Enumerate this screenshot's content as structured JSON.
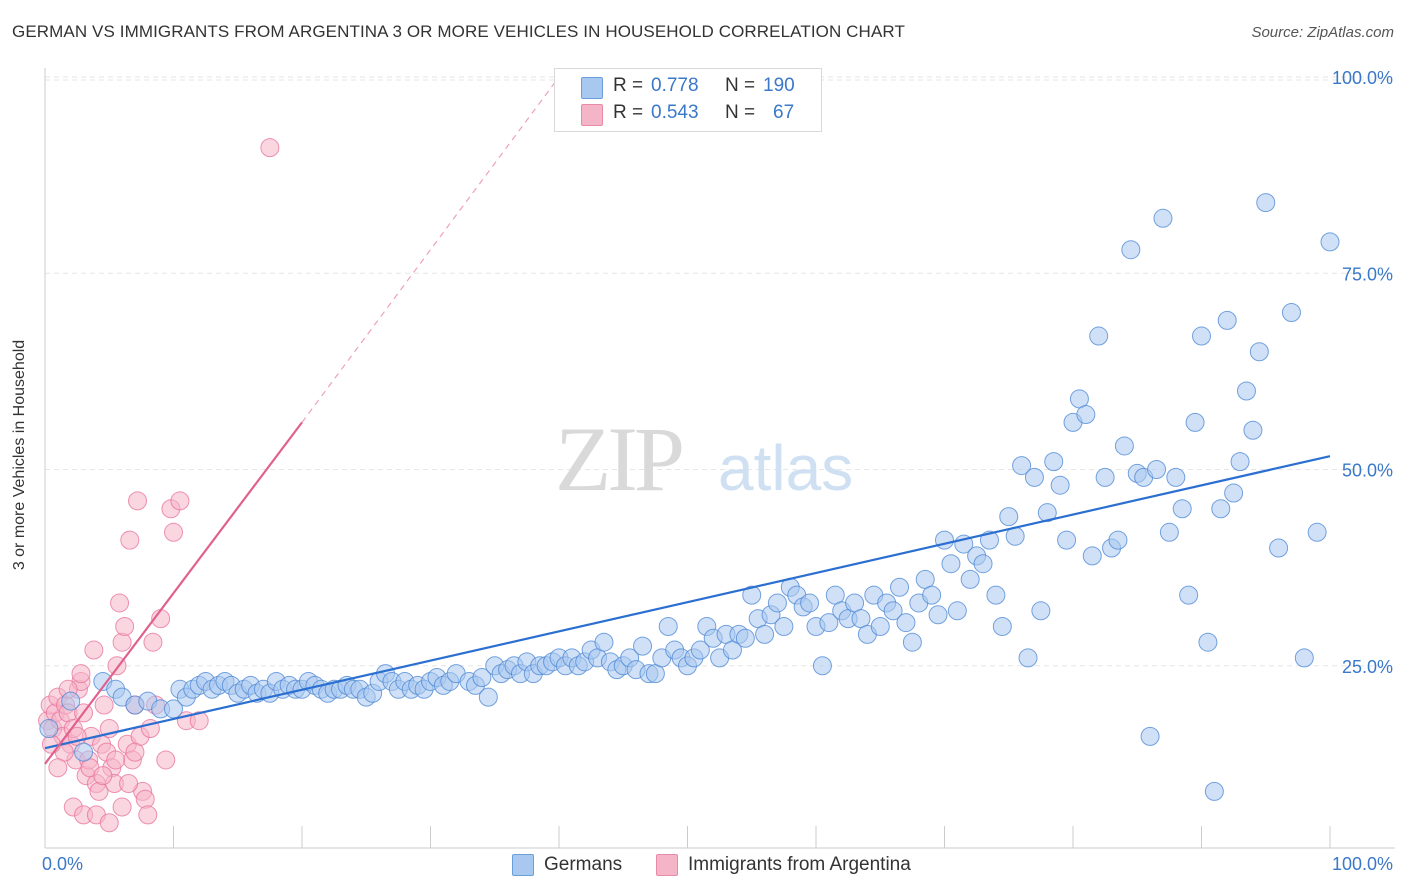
{
  "header": {
    "title": "GERMAN VS IMMIGRANTS FROM ARGENTINA 3 OR MORE VEHICLES IN HOUSEHOLD CORRELATION CHART",
    "source": "Source: ZipAtlas.com"
  },
  "watermark": {
    "zip": "ZIP",
    "atlas": "atlas"
  },
  "stats": {
    "rows": [
      {
        "r_label": "R =",
        "r_value": "0.778",
        "n_label": "N =",
        "n_value": "190",
        "color": "#a9c8f0"
      },
      {
        "r_label": "R =",
        "r_value": "0.543",
        "n_label": "N =",
        "n_value": "67",
        "color": "#f5b5c8"
      }
    ]
  },
  "legend": {
    "items": [
      {
        "label": "Germans",
        "color": "#a9c8f0"
      },
      {
        "label": "Immigrants from Argentina",
        "color": "#f5b5c8"
      }
    ]
  },
  "chart_data": {
    "type": "scatter",
    "title": "GERMAN VS IMMIGRANTS FROM ARGENTINA 3 OR MORE VEHICLES IN HOUSEHOLD CORRELATION CHART",
    "ylabel": "3 or more Vehicles in Household",
    "xlabel": "",
    "xlim": [
      0,
      100
    ],
    "ylim": [
      0,
      100
    ],
    "x_tick_labels": [
      "0.0%",
      "100.0%"
    ],
    "y_ticks": [
      25,
      50,
      75,
      100
    ],
    "y_tick_labels": [
      "25.0%",
      "50.0%",
      "75.0%",
      "100.0%"
    ],
    "grid": true,
    "series": [
      {
        "name": "Germans",
        "color": "#4a86d4",
        "fill": "#a9c8f0",
        "trend": {
          "x": [
            0,
            100
          ],
          "y": [
            14.5,
            51.7
          ],
          "style": "solid"
        },
        "points": [
          [
            0.3,
            17
          ],
          [
            2,
            20.5
          ],
          [
            3,
            14
          ],
          [
            4.5,
            23
          ],
          [
            5.5,
            22
          ],
          [
            6,
            21
          ],
          [
            7,
            20
          ],
          [
            8,
            20.5
          ],
          [
            9,
            19.5
          ],
          [
            10,
            19.5
          ],
          [
            10.5,
            22
          ],
          [
            11,
            21
          ],
          [
            11.5,
            22
          ],
          [
            12,
            22.5
          ],
          [
            12.5,
            23
          ],
          [
            13,
            22
          ],
          [
            13.5,
            22.5
          ],
          [
            14,
            23
          ],
          [
            14.5,
            22.5
          ],
          [
            15,
            21.5
          ],
          [
            15.5,
            22
          ],
          [
            16,
            22.5
          ],
          [
            16.5,
            21.5
          ],
          [
            17,
            22
          ],
          [
            17.5,
            21.5
          ],
          [
            18,
            23
          ],
          [
            18.5,
            22
          ],
          [
            19,
            22.5
          ],
          [
            19.5,
            22
          ],
          [
            20,
            22
          ],
          [
            20.5,
            23
          ],
          [
            21,
            22.5
          ],
          [
            21.5,
            22
          ],
          [
            22,
            21.5
          ],
          [
            22.5,
            22
          ],
          [
            23,
            22
          ],
          [
            23.5,
            22.5
          ],
          [
            24,
            22
          ],
          [
            24.5,
            22
          ],
          [
            25,
            21
          ],
          [
            25.5,
            21.5
          ],
          [
            26,
            23
          ],
          [
            26.5,
            24
          ],
          [
            27,
            23
          ],
          [
            27.5,
            22
          ],
          [
            28,
            23
          ],
          [
            28.5,
            22
          ],
          [
            29,
            22.5
          ],
          [
            29.5,
            22
          ],
          [
            30,
            23
          ],
          [
            30.5,
            23.5
          ],
          [
            31,
            22.5
          ],
          [
            31.5,
            23
          ],
          [
            32,
            24
          ],
          [
            33,
            23
          ],
          [
            33.5,
            22.5
          ],
          [
            34,
            23.5
          ],
          [
            34.5,
            21
          ],
          [
            35,
            25
          ],
          [
            35.5,
            24
          ],
          [
            36,
            24.5
          ],
          [
            36.5,
            25
          ],
          [
            37,
            24
          ],
          [
            37.5,
            25.5
          ],
          [
            38,
            24
          ],
          [
            38.5,
            25
          ],
          [
            39,
            25
          ],
          [
            39.5,
            25.5
          ],
          [
            40,
            26
          ],
          [
            40.5,
            25
          ],
          [
            41,
            26
          ],
          [
            41.5,
            25
          ],
          [
            42,
            25.5
          ],
          [
            42.5,
            27
          ],
          [
            43,
            26
          ],
          [
            43.5,
            28
          ],
          [
            44,
            25.5
          ],
          [
            44.5,
            24.5
          ],
          [
            45,
            25
          ],
          [
            45.5,
            26
          ],
          [
            46,
            24.5
          ],
          [
            46.5,
            27.5
          ],
          [
            47,
            24
          ],
          [
            47.5,
            24
          ],
          [
            48,
            26
          ],
          [
            48.5,
            30
          ],
          [
            49,
            27
          ],
          [
            49.5,
            26
          ],
          [
            50,
            25
          ],
          [
            50.5,
            26
          ],
          [
            51,
            27
          ],
          [
            51.5,
            30
          ],
          [
            52,
            28.5
          ],
          [
            52.5,
            26
          ],
          [
            53,
            29
          ],
          [
            53.5,
            27
          ],
          [
            54,
            29
          ],
          [
            54.5,
            28.5
          ],
          [
            55,
            34
          ],
          [
            55.5,
            31
          ],
          [
            56,
            29
          ],
          [
            56.5,
            31.5
          ],
          [
            57,
            33
          ],
          [
            57.5,
            30
          ],
          [
            58,
            35
          ],
          [
            58.5,
            34
          ],
          [
            59,
            32.5
          ],
          [
            59.5,
            33
          ],
          [
            60,
            30
          ],
          [
            60.5,
            25
          ],
          [
            61,
            30.5
          ],
          [
            61.5,
            34
          ],
          [
            62,
            32
          ],
          [
            62.5,
            31
          ],
          [
            63,
            33
          ],
          [
            63.5,
            31
          ],
          [
            64,
            29
          ],
          [
            64.5,
            34
          ],
          [
            65,
            30
          ],
          [
            65.5,
            33
          ],
          [
            66,
            32
          ],
          [
            66.5,
            35
          ],
          [
            67,
            30.5
          ],
          [
            67.5,
            28
          ],
          [
            68,
            33
          ],
          [
            68.5,
            36
          ],
          [
            69,
            34
          ],
          [
            69.5,
            31.5
          ],
          [
            70,
            41
          ],
          [
            70.5,
            38
          ],
          [
            71,
            32
          ],
          [
            71.5,
            40.5
          ],
          [
            72,
            36
          ],
          [
            72.5,
            39
          ],
          [
            73,
            38
          ],
          [
            73.5,
            41
          ],
          [
            74,
            34
          ],
          [
            74.5,
            30
          ],
          [
            75,
            44
          ],
          [
            75.5,
            41.5
          ],
          [
            76,
            50.5
          ],
          [
            76.5,
            26
          ],
          [
            77,
            49
          ],
          [
            77.5,
            32
          ],
          [
            78,
            44.5
          ],
          [
            78.5,
            51
          ],
          [
            79,
            48
          ],
          [
            79.5,
            41
          ],
          [
            80,
            56
          ],
          [
            80.5,
            59
          ],
          [
            81,
            57
          ],
          [
            81.5,
            39
          ],
          [
            82,
            67
          ],
          [
            82.5,
            49
          ],
          [
            83,
            40
          ],
          [
            83.5,
            41
          ],
          [
            84,
            53
          ],
          [
            84.5,
            78
          ],
          [
            85,
            49.5
          ],
          [
            85.5,
            49
          ],
          [
            86,
            16
          ],
          [
            86.5,
            50
          ],
          [
            87,
            82
          ],
          [
            87.5,
            42
          ],
          [
            88,
            49
          ],
          [
            88.5,
            45
          ],
          [
            89,
            34
          ],
          [
            89.5,
            56
          ],
          [
            90,
            67
          ],
          [
            90.5,
            28
          ],
          [
            91,
            9
          ],
          [
            91.5,
            45
          ],
          [
            92,
            69
          ],
          [
            92.5,
            47
          ],
          [
            93,
            51
          ],
          [
            93.5,
            60
          ],
          [
            94,
            55
          ],
          [
            94.5,
            65
          ],
          [
            95,
            84
          ],
          [
            96,
            40
          ],
          [
            97,
            70
          ],
          [
            98,
            26
          ],
          [
            99,
            42
          ],
          [
            100,
            79
          ]
        ]
      },
      {
        "name": "Immigrants from Argentina",
        "color": "#e8709a",
        "fill": "#f5b5c8",
        "trend": {
          "x": [
            0,
            20
          ],
          "y": [
            12.5,
            56
          ],
          "style": "solid",
          "dashed_extension_to": [
            40,
            100
          ]
        },
        "points": [
          [
            0.2,
            18
          ],
          [
            0.4,
            20
          ],
          [
            0.6,
            17
          ],
          [
            0.8,
            19
          ],
          [
            1,
            21
          ],
          [
            1.2,
            18
          ],
          [
            1.4,
            16
          ],
          [
            1.6,
            20
          ],
          [
            1.8,
            19
          ],
          [
            2,
            15
          ],
          [
            2.2,
            17
          ],
          [
            2.4,
            13
          ],
          [
            2.6,
            22
          ],
          [
            2.8,
            23
          ],
          [
            3,
            19
          ],
          [
            3.2,
            11
          ],
          [
            3.4,
            13
          ],
          [
            3.6,
            16
          ],
          [
            3.8,
            27
          ],
          [
            4,
            10
          ],
          [
            4.2,
            9
          ],
          [
            4.4,
            15
          ],
          [
            4.6,
            20
          ],
          [
            4.8,
            14
          ],
          [
            5,
            17
          ],
          [
            5.2,
            12
          ],
          [
            5.4,
            10
          ],
          [
            5.6,
            25
          ],
          [
            5.8,
            33
          ],
          [
            6,
            28
          ],
          [
            6.2,
            30
          ],
          [
            6.4,
            15
          ],
          [
            6.6,
            41
          ],
          [
            6.8,
            13
          ],
          [
            7,
            20
          ],
          [
            7.2,
            46
          ],
          [
            7.4,
            16
          ],
          [
            7.6,
            9
          ],
          [
            7.8,
            8
          ],
          [
            8,
            6
          ],
          [
            8.2,
            17
          ],
          [
            8.4,
            28
          ],
          [
            8.6,
            20
          ],
          [
            9,
            31
          ],
          [
            9.4,
            13
          ],
          [
            9.8,
            45
          ],
          [
            10,
            42
          ],
          [
            10.5,
            46
          ],
          [
            11,
            18
          ],
          [
            12,
            18
          ],
          [
            17.5,
            91
          ],
          [
            2.2,
            7
          ],
          [
            3,
            6
          ],
          [
            4,
            6
          ],
          [
            5,
            5
          ],
          [
            6,
            7
          ],
          [
            1.5,
            14
          ],
          [
            2.5,
            16
          ],
          [
            3.5,
            12
          ],
          [
            4.5,
            11
          ],
          [
            5.5,
            13
          ],
          [
            6.5,
            10
          ],
          [
            7,
            14
          ],
          [
            1,
            12
          ],
          [
            0.5,
            15
          ],
          [
            1.8,
            22
          ],
          [
            2.8,
            24
          ]
        ]
      }
    ]
  }
}
